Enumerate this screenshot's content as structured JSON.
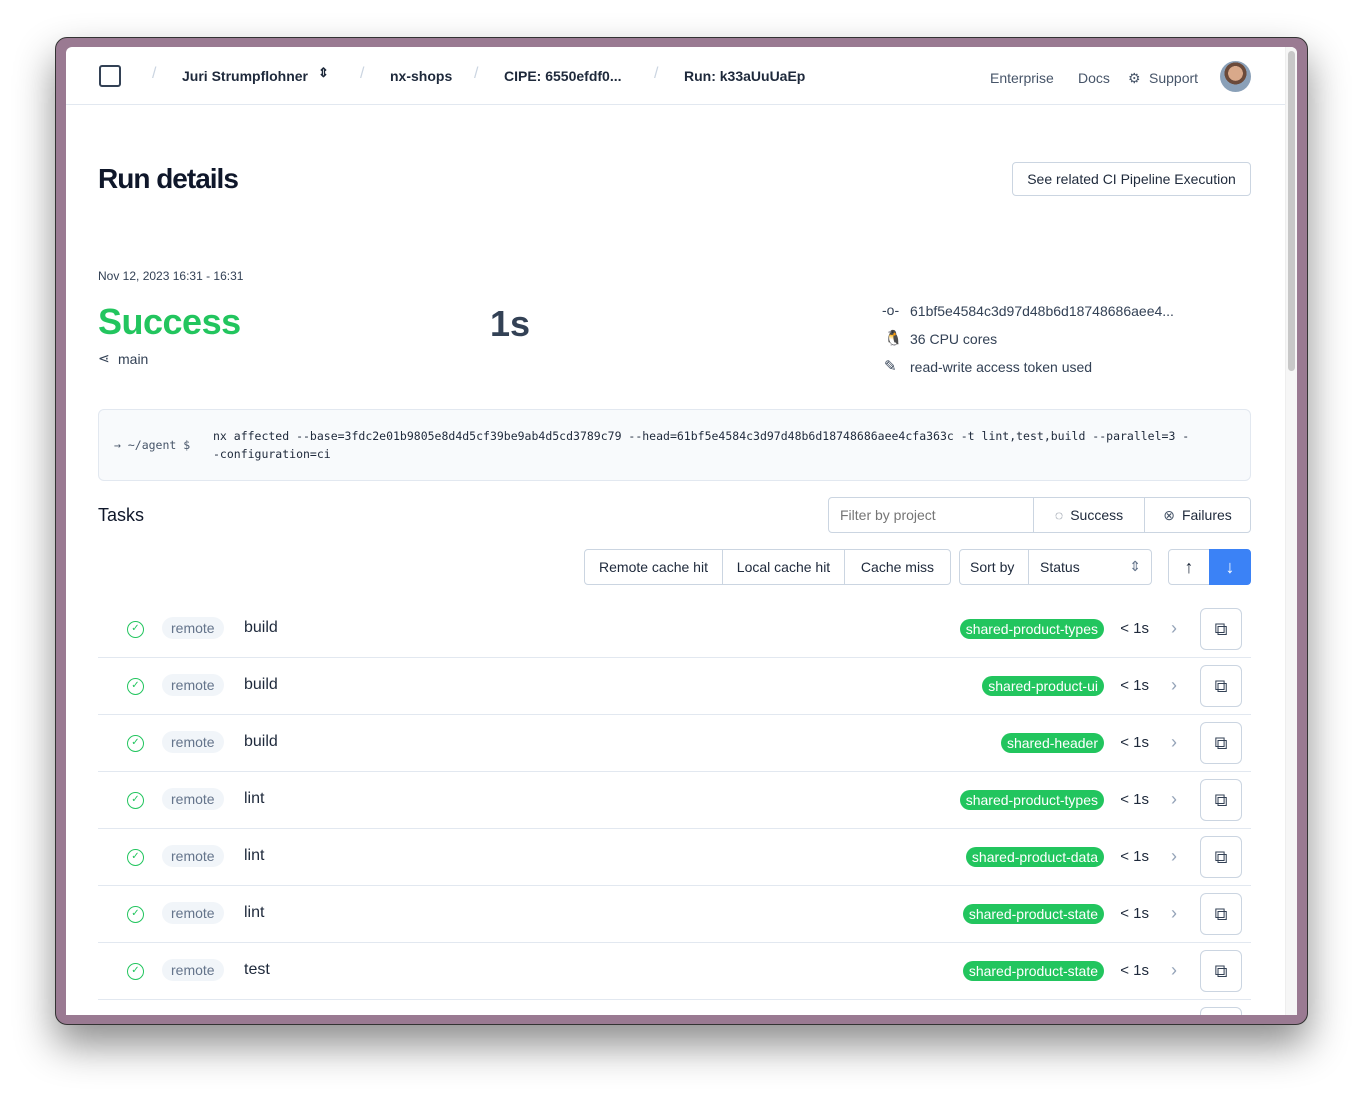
{
  "breadcrumb": {
    "user": "Juri Strumpflohner",
    "workspace": "nx-shops",
    "cipe": "CIPE: 6550efdf0...",
    "run": "Run: k33aUuUaEp"
  },
  "nav": {
    "enterprise": "Enterprise",
    "docs": "Docs",
    "support": "Support"
  },
  "page": {
    "title": "Run details",
    "related_button": "See related CI Pipeline Execution",
    "timestamp": "Nov 12, 2023 16:31 - 16:31",
    "status": "Success",
    "duration": "1s",
    "branch": "main",
    "commit": "61bf5e4584c3d97d48b6d18748686aee4...",
    "cpu": "36 CPU cores",
    "token": "read-write access token used"
  },
  "command": {
    "prompt": "→ ~/agent $",
    "line1": "nx affected --base=3fdc2e01b9805e8d4d5cf39be9ab4d5cd3789c79 --head=61bf5e4584c3d97d48b6d18748686aee4cfa363c -t lint,test,build --parallel=3 -",
    "line2": "-configuration=ci"
  },
  "tasks": {
    "title": "Tasks",
    "filter_placeholder": "Filter by project",
    "success": "Success",
    "failures": "Failures",
    "cache": [
      "Remote cache hit",
      "Local cache hit",
      "Cache miss"
    ],
    "sort_label": "Sort by",
    "sort_value": "Status",
    "rows": [
      {
        "cache": "remote",
        "target": "build",
        "project": "shared-product-types",
        "duration": "< 1s"
      },
      {
        "cache": "remote",
        "target": "build",
        "project": "shared-product-ui",
        "duration": "< 1s"
      },
      {
        "cache": "remote",
        "target": "build",
        "project": "shared-header",
        "duration": "< 1s"
      },
      {
        "cache": "remote",
        "target": "lint",
        "project": "shared-product-types",
        "duration": "< 1s"
      },
      {
        "cache": "remote",
        "target": "lint",
        "project": "shared-product-data",
        "duration": "< 1s"
      },
      {
        "cache": "remote",
        "target": "lint",
        "project": "shared-product-state",
        "duration": "< 1s"
      },
      {
        "cache": "remote",
        "target": "test",
        "project": "shared-product-state",
        "duration": "< 1s"
      }
    ]
  },
  "colors": {
    "success": "#22c55e",
    "accent": "#3b82f6"
  }
}
